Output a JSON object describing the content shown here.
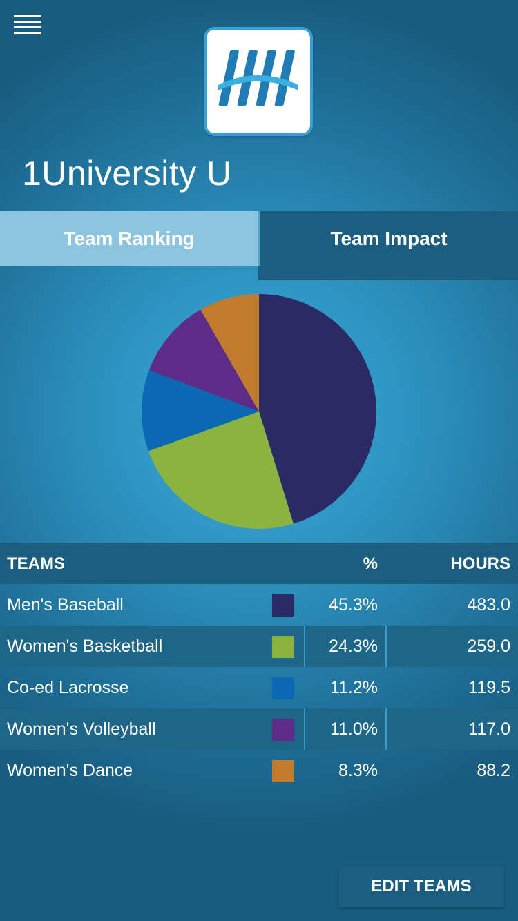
{
  "header": {
    "menu_icon": "hamburger-menu-icon",
    "logo_icon": "app-logo-icon",
    "org_name": "1University U"
  },
  "tabs": [
    {
      "label": "Team Ranking",
      "active": true
    },
    {
      "label": "Team Impact",
      "active": false
    }
  ],
  "table": {
    "headers": {
      "team": "TEAMS",
      "pct": "%",
      "hours": "HOURS"
    },
    "rows": [
      {
        "team": "Men's Baseball",
        "pct": "45.3%",
        "hours": "483.0",
        "color": "#2a2a64"
      },
      {
        "team": "Women's Basketball",
        "pct": "24.3%",
        "hours": "259.0",
        "color": "#8ab340"
      },
      {
        "team": "Co-ed Lacrosse",
        "pct": "11.2%",
        "hours": "119.5",
        "color": "#0a68b4"
      },
      {
        "team": "Women's Volleyball",
        "pct": "11.0%",
        "hours": "117.0",
        "color": "#5e2b86"
      },
      {
        "team": "Women's Dance",
        "pct": "8.3%",
        "hours": "88.2",
        "color": "#c27a2c"
      }
    ]
  },
  "chart_data": {
    "type": "pie",
    "categories": [
      "Men's Baseball",
      "Women's Basketball",
      "Co-ed Lacrosse",
      "Women's Volleyball",
      "Women's Dance"
    ],
    "values": [
      45.3,
      24.3,
      11.2,
      11.0,
      8.3
    ],
    "colors": [
      "#2a2a64",
      "#8ab340",
      "#0a68b4",
      "#5e2b86",
      "#c27a2c"
    ],
    "start": "top",
    "direction": "clockwise"
  },
  "actions": {
    "edit_teams": "EDIT TEAMS"
  }
}
